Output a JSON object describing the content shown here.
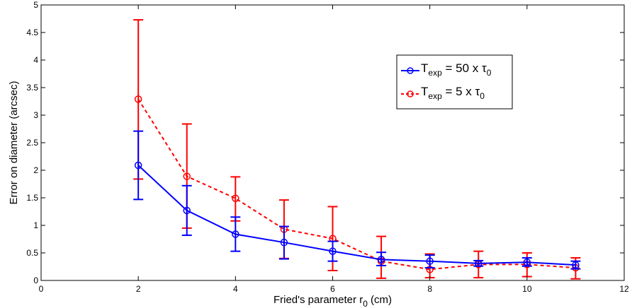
{
  "chart_data": {
    "type": "line",
    "xlabel": {
      "main": "Fried's parameter r",
      "sub": "0",
      "unit": " (cm)"
    },
    "ylabel": "Error on diameter (arcsec)",
    "xlim": [
      0,
      12
    ],
    "ylim": [
      0,
      5
    ],
    "xticks": [
      0,
      2,
      4,
      6,
      8,
      10,
      12
    ],
    "yticks": [
      0,
      0.5,
      1,
      1.5,
      2,
      2.5,
      3,
      3.5,
      4,
      4.5,
      5
    ],
    "xtick_labels": [
      "0",
      "2",
      "4",
      "6",
      "8",
      "10",
      "12"
    ],
    "ytick_labels": [
      "0",
      "0.5",
      "1",
      "1.5",
      "2",
      "2.5",
      "3",
      "3.5",
      "4",
      "4.5",
      "5"
    ],
    "grid": false,
    "legend_position": "upper-right",
    "x": [
      2,
      3,
      4,
      5,
      6,
      7,
      8,
      9,
      10,
      11
    ],
    "series": [
      {
        "name": "T_exp = 50 x τ_0",
        "legend": {
          "T": "T",
          "sub": "exp",
          "mid": " = 50 x τ",
          "sub2": "0"
        },
        "color": "#0000ff",
        "line_style": "solid",
        "marker": "circle",
        "values": [
          2.09,
          1.27,
          0.84,
          0.69,
          0.53,
          0.38,
          0.35,
          0.31,
          0.33,
          0.28
        ],
        "err_low": [
          1.47,
          0.82,
          0.53,
          0.39,
          0.35,
          0.27,
          0.23,
          0.26,
          0.26,
          0.21
        ],
        "err_high": [
          2.71,
          1.72,
          1.15,
          0.98,
          0.71,
          0.51,
          0.46,
          0.36,
          0.41,
          0.35
        ]
      },
      {
        "name": "T_exp = 5 x τ_0",
        "legend": {
          "T": "T",
          "sub": "exp",
          "mid": " = 5 x τ",
          "sub2": "0"
        },
        "color": "#ff0000",
        "line_style": "dashed",
        "marker": "circle",
        "values": [
          3.29,
          1.89,
          1.49,
          0.93,
          0.76,
          0.35,
          0.2,
          0.29,
          0.29,
          0.23
        ],
        "err_low": [
          1.84,
          0.95,
          1.08,
          0.4,
          0.18,
          0.04,
          0.05,
          0.05,
          0.07,
          0.03
        ],
        "err_high": [
          4.73,
          2.84,
          1.88,
          1.46,
          1.34,
          0.8,
          0.48,
          0.53,
          0.5,
          0.41
        ]
      }
    ]
  }
}
